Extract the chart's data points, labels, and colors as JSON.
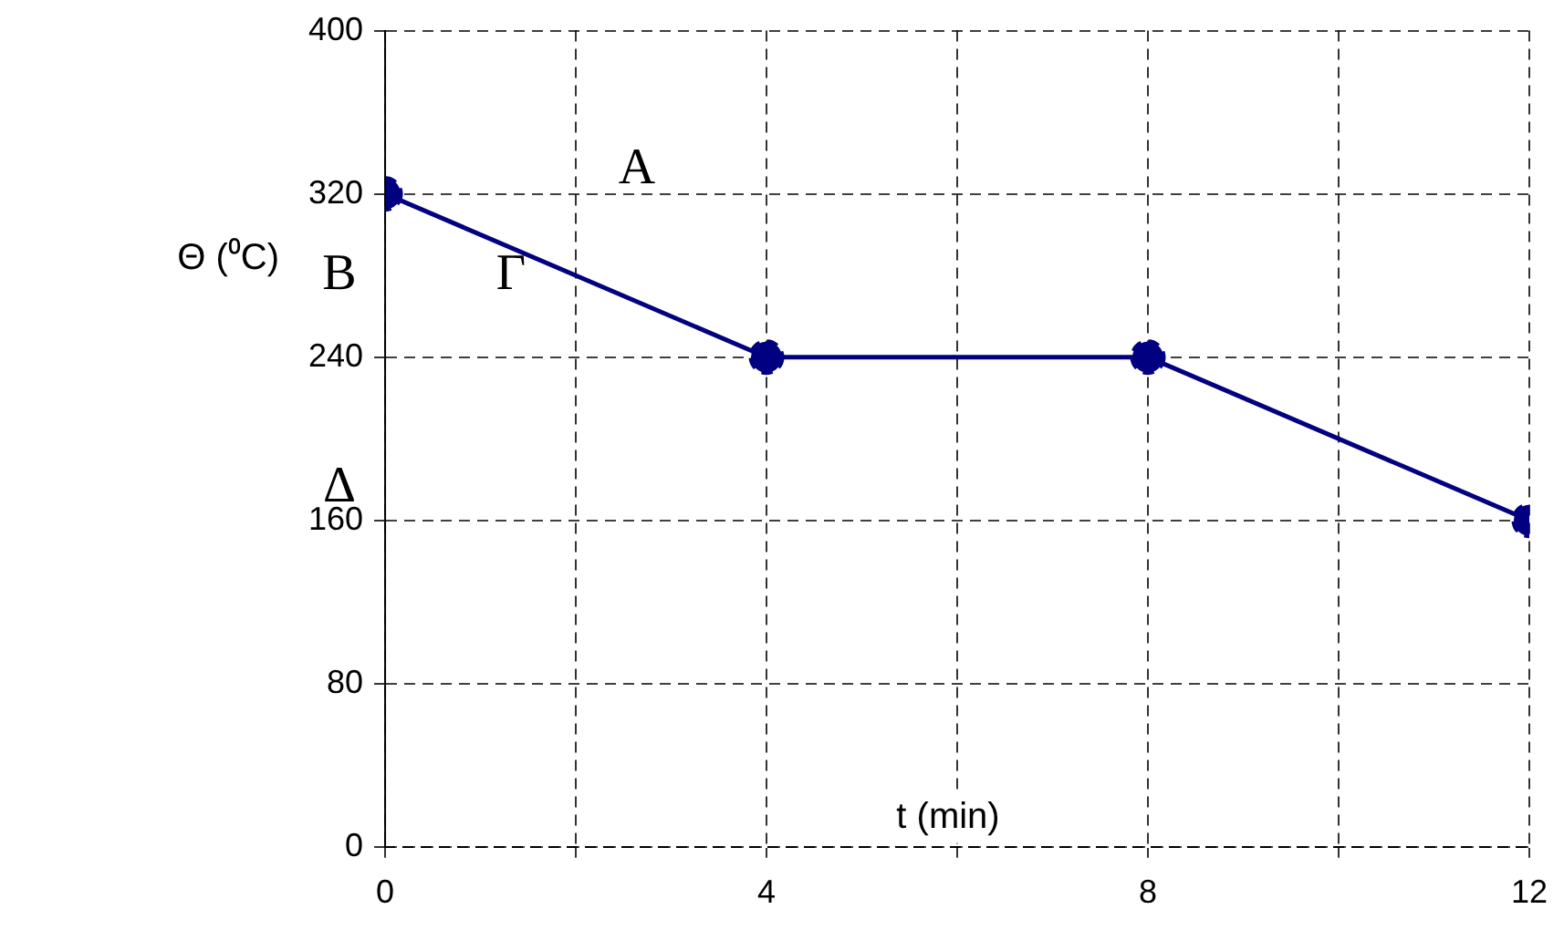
{
  "chart_data": {
    "type": "line",
    "xlabel": "t (min)",
    "ylabel": "Θ (⁰C)",
    "x": [
      0,
      4,
      8,
      12
    ],
    "series": [
      {
        "color": "#000080",
        "values": [
          320,
          240,
          240,
          160
        ]
      }
    ],
    "xlim": [
      0,
      12
    ],
    "xticks": [
      0,
      {
        "value": 2,
        "label": null
      },
      4,
      {
        "value": 6,
        "label": null
      },
      8,
      {
        "value": 10,
        "label": null
      },
      12
    ],
    "ylim": [
      0,
      400
    ],
    "yticks": [
      0,
      80,
      160,
      240,
      320,
      400
    ],
    "grid": true,
    "legend": false,
    "marker": "circle",
    "line_style": "solid",
    "annotations": [
      "A",
      "B",
      "Γ",
      "Δ"
    ]
  }
}
